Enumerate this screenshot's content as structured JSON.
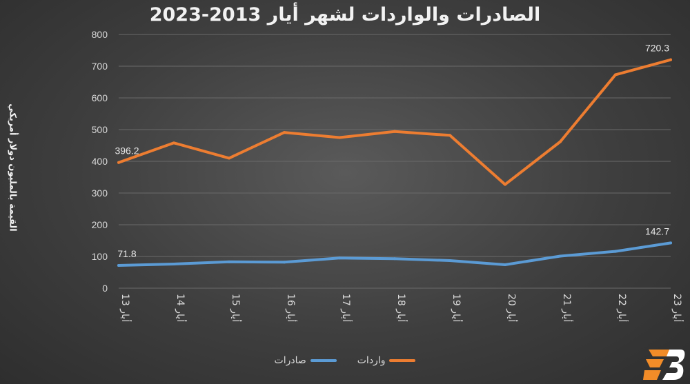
{
  "chart_data": {
    "type": "line",
    "title": "الصادرات والواردات لشهر أيار 2013-2023",
    "ylabel": "القيمة بالمليون دولار أمريكي",
    "xlabel": "",
    "categories": [
      "أيار 13",
      "أيار 14",
      "أيار 15",
      "أيار 16",
      "أيار 17",
      "أيار 18",
      "أيار 19",
      "أيار 20",
      "أيار 21",
      "أيار 22",
      "أيار 23"
    ],
    "ylim": [
      0,
      800
    ],
    "yticks": [
      "0",
      "100",
      "200",
      "300",
      "400",
      "500",
      "600",
      "700",
      "800"
    ],
    "grid": true,
    "legend_position": "bottom",
    "series": [
      {
        "name": "واردات",
        "color": "#ed7d31",
        "values": [
          396.2,
          458,
          410,
          491,
          475,
          494,
          482,
          327,
          462,
          673,
          720.3
        ],
        "labels": {
          "0": "396.2",
          "10": "720.3"
        }
      },
      {
        "name": "صادرات",
        "color": "#5b9bd5",
        "values": [
          71.8,
          76,
          83,
          82,
          95,
          93,
          87,
          74,
          101,
          116,
          142.7
        ],
        "labels": {
          "0": "71.8",
          "10": "142.7"
        }
      }
    ]
  },
  "logo": {
    "name": "logo-icon"
  }
}
